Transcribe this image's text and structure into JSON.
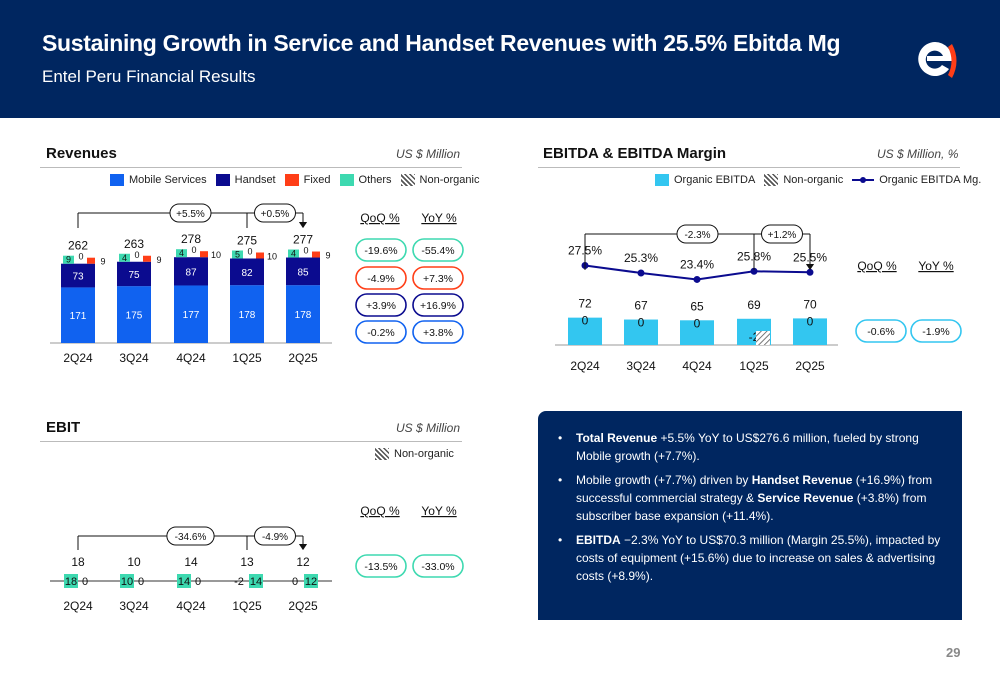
{
  "header": {
    "title": "Sustaining Growth in Service and Handset Revenues with 25.5% Ebitda Mg",
    "subtitle": "Entel Peru Financial Results"
  },
  "colors": {
    "navy": "#002660",
    "mobile_services": "#1062f0",
    "handset": "#0b0b8f",
    "fixed": "#ff3e17",
    "others": "#3dd9b0",
    "ebitda_bar": "#33c6f0",
    "qoq_green": "#3dd9b0",
    "qoq_red": "#ff3e17",
    "qoq_navy": "#0b0b8f",
    "qoq_blue": "#1062f0"
  },
  "revenues": {
    "title": "Revenues",
    "unit": "US $ Million",
    "legend": [
      "Mobile  Services",
      "Handset",
      "Fixed",
      "Others",
      "Non-organic"
    ],
    "qoq_header": "QoQ %",
    "yoy_header": "YoY %",
    "growth": [
      {
        "qoq": "-19.6%",
        "yoy": "-55.4%",
        "color": "#3dd9b0"
      },
      {
        "qoq": "-4.9%",
        "yoy": "+7.3%",
        "color": "#ff3e17"
      },
      {
        "qoq": "+3.9%",
        "yoy": "+16.9%",
        "color": "#0b0b8f"
      },
      {
        "qoq": "-0.2%",
        "yoy": "+3.8%",
        "color": "#1062f0"
      }
    ]
  },
  "ebitda": {
    "title": "EBITDA & EBITDA Margin",
    "unit": "US $ Million, %",
    "legend": [
      "Organic EBITDA",
      "Non-organic",
      "Organic EBITDA Mg."
    ],
    "qoq_header": "QoQ %",
    "yoy_header": "YoY %",
    "qoq": "-0.6%",
    "yoy": "-1.9%"
  },
  "ebit": {
    "title": "EBIT",
    "unit": "US $ Million",
    "legend": [
      "Non-organic"
    ],
    "qoq_header": "QoQ %",
    "yoy_header": "YoY %",
    "qoq": "-13.5%",
    "yoy": "-33.0%"
  },
  "summary": {
    "b1_bold": "Total Revenue",
    "b1_text": " +5.5% YoY to US$276.6 million, fueled by strong Mobile growth (+7.7%).",
    "b2_a": "Mobile growth (+7.7%) driven by ",
    "b2_bold1": "Handset Revenue",
    "b2_b": " (+16.9%) from successful commercial strategy & ",
    "b2_bold2": "Service Revenue",
    "b2_c": " (+3.8%) from subscriber base expansion (+11.4%).",
    "b3_bold": "EBITDA",
    "b3_text": " −2.3% YoY to US$70.3 million (Margin 25.5%), impacted by costs of equipment (+15.6%) due to increase on sales & advertising costs (+8.9%)."
  },
  "page_number": "29",
  "chart_data": [
    {
      "type": "bar",
      "title": "Revenues",
      "stacked": true,
      "categories": [
        "2Q24",
        "3Q24",
        "4Q24",
        "1Q25",
        "2Q25"
      ],
      "totals": [
        "262",
        "263",
        "278",
        "275",
        "277"
      ],
      "series": [
        {
          "name": "Mobile  Services",
          "values": [
            171,
            175,
            177,
            178,
            178
          ]
        },
        {
          "name": "Handset",
          "values": [
            73,
            75,
            87,
            82,
            85
          ]
        },
        {
          "name": "Fixed",
          "values": [
            9,
            9,
            10,
            10,
            9
          ]
        },
        {
          "name": "Others",
          "values": [
            9,
            4,
            4,
            5,
            4
          ]
        },
        {
          "name": "Non-organic",
          "values": [
            0,
            0,
            0,
            0,
            0
          ]
        }
      ],
      "annotations": [
        {
          "from": "2Q24",
          "to": "2Q25",
          "label": "+5.5%"
        },
        {
          "from": "1Q25",
          "to": "2Q25",
          "label": "+0.5%"
        }
      ]
    },
    {
      "type": "bar",
      "title": "EBITDA & EBITDA Margin",
      "categories": [
        "2Q24",
        "3Q24",
        "4Q24",
        "1Q25",
        "2Q25"
      ],
      "totals": [
        "72",
        "67",
        "65",
        "69",
        "70"
      ],
      "series": [
        {
          "name": "Organic EBITDA",
          "values": [
            72,
            67,
            65,
            69,
            70
          ]
        },
        {
          "name": "Non-organic",
          "values": [
            "0",
            "0",
            "0",
            "-2",
            "0"
          ]
        },
        {
          "name": "Organic EBITDA Mg.",
          "type": "line",
          "values": [
            27.5,
            25.3,
            23.4,
            25.8,
            25.5
          ],
          "labels": [
            "27.5%",
            "25.3%",
            "23.4%",
            "25.8%",
            "25.5%"
          ]
        }
      ],
      "annotations": [
        {
          "from": "2Q24",
          "to": "2Q25",
          "label": "-2.3%"
        },
        {
          "from": "1Q25",
          "to": "2Q25",
          "label": "+1.2%"
        }
      ]
    },
    {
      "type": "bar",
      "title": "EBIT",
      "categories": [
        "2Q24",
        "3Q24",
        "4Q24",
        "1Q25",
        "2Q25"
      ],
      "totals": [
        "18",
        "10",
        "14",
        "13",
        "12"
      ],
      "series": [
        {
          "name": "EBIT",
          "values": [
            "18",
            "10",
            "14",
            "14",
            "12"
          ]
        },
        {
          "name": "Non-organic",
          "values": [
            "0",
            "0",
            "0",
            "-2",
            "0"
          ]
        }
      ],
      "annotations": [
        {
          "from": "2Q24",
          "to": "2Q25",
          "label": "-34.6%"
        },
        {
          "from": "1Q25",
          "to": "2Q25",
          "label": "-4.9%"
        }
      ]
    }
  ]
}
